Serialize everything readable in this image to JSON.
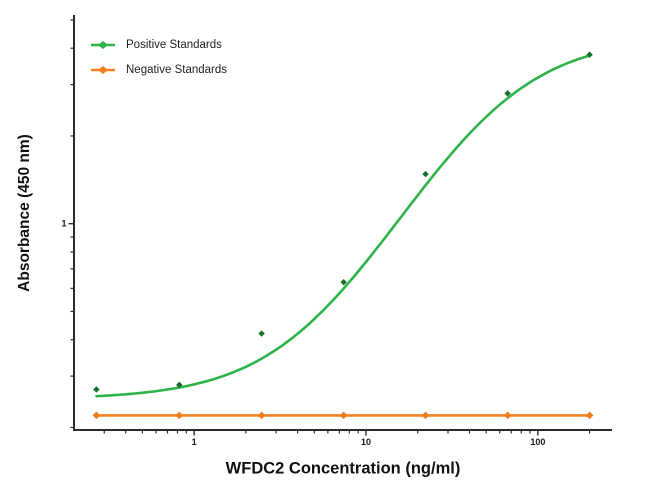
{
  "chart_data": {
    "type": "line",
    "title": "",
    "xlabel": "WFDC2 Concentration (ng/ml)",
    "ylabel": "Absorbance (450 nm)",
    "x_scale": "log",
    "y_scale": "log",
    "x_domain": [
      0.2,
      270
    ],
    "y_domain": [
      0.196,
      5.2
    ],
    "grid": false,
    "legend_position": "top-left-inside",
    "axis_color": "#2b2b2b",
    "x_major_ticks": [
      {
        "value": 1,
        "label": "1"
      },
      {
        "value": 10,
        "label": "10"
      },
      {
        "value": 100,
        "label": "100"
      }
    ],
    "y_major_ticks": [
      {
        "value": 1,
        "label": "1"
      }
    ],
    "series": [
      {
        "name": "Positive Standards",
        "color": "#2eb34a",
        "marker_color": "#146e2c",
        "marker": "diamond",
        "marker_size": 3.2,
        "x": [
          0.27,
          0.82,
          2.47,
          7.41,
          22.2,
          66.7,
          200
        ],
        "y": [
          0.27,
          0.28,
          0.42,
          0.63,
          1.48,
          2.8,
          3.8
        ],
        "fit_4pl": {
          "a": 0.25,
          "d": 4.4,
          "c": 50,
          "b": 1.25
        }
      },
      {
        "name": "Negative Standards",
        "color": "#f5821f",
        "marker_color": "#ef7d1a",
        "marker": "diamond",
        "marker_size": 3.8,
        "x": [
          0.27,
          0.82,
          2.47,
          7.41,
          22.2,
          66.7,
          200
        ],
        "y": [
          0.22,
          0.22,
          0.22,
          0.22,
          0.22,
          0.22,
          0.22
        ]
      }
    ]
  }
}
